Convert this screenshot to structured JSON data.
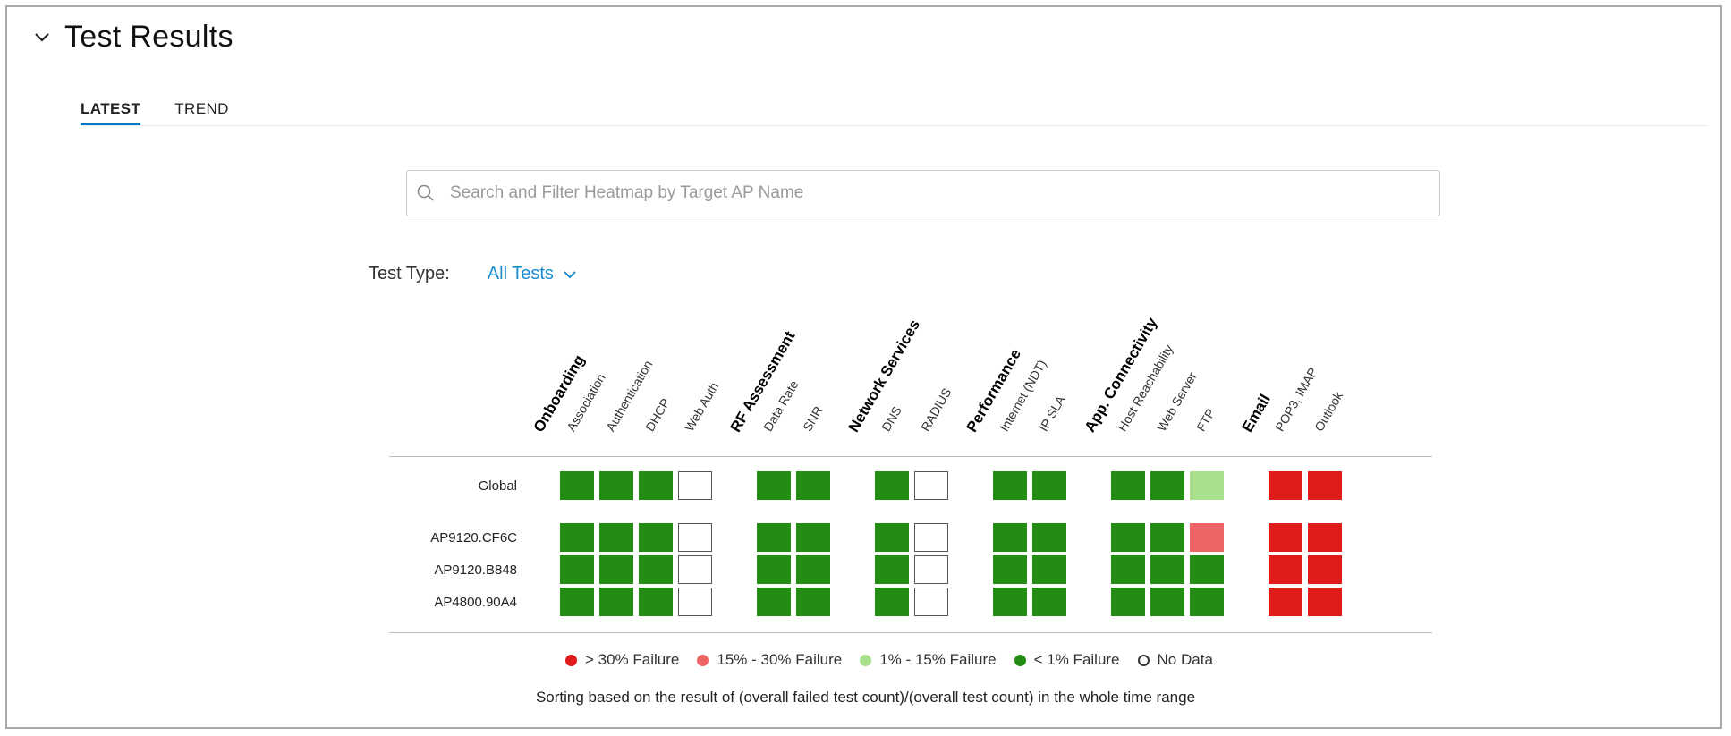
{
  "header": {
    "title": "Test Results"
  },
  "tabs": [
    {
      "label": "LATEST",
      "active": true
    },
    {
      "label": "TREND",
      "active": false
    }
  ],
  "search": {
    "placeholder": "Search and Filter Heatmap by Target AP Name",
    "value": ""
  },
  "filter": {
    "label": "Test Type:",
    "selected": "All Tests"
  },
  "colors": {
    "accent": "#1a8cd0",
    "tab_underline": "#0a78c8",
    "fail_over_30": "#e01b1b",
    "fail_15_30": "#ee6464",
    "fail_1_15": "#a8e08e",
    "fail_under_1": "#238c12",
    "no_data": "#ffffff"
  },
  "groups": [
    {
      "name": "Onboarding",
      "tests": [
        "Association",
        "Authentication",
        "DHCP",
        "Web Auth"
      ]
    },
    {
      "name": "RF Assessment",
      "tests": [
        "Data Rate",
        "SNR"
      ]
    },
    {
      "name": "Network Services",
      "tests": [
        "DNS",
        "RADIUS"
      ]
    },
    {
      "name": "Performance",
      "tests": [
        "Internet (NDT)",
        "IP SLA"
      ]
    },
    {
      "name": "App. Connectivity",
      "tests": [
        "Host Reachability",
        "Web Server",
        "FTP"
      ]
    },
    {
      "name": "Email",
      "tests": [
        "POP3, IMAP",
        "Outlook"
      ]
    }
  ],
  "rows": [
    {
      "label": "Global",
      "cells": [
        "lt1",
        "lt1",
        "lt1",
        "none",
        "lt1",
        "lt1",
        "lt1",
        "none",
        "lt1",
        "lt1",
        "lt1",
        "lt1",
        "1to15",
        "gt30",
        "gt30"
      ]
    },
    {
      "label": "AP9120.CF6C",
      "cells": [
        "lt1",
        "lt1",
        "lt1",
        "none",
        "lt1",
        "lt1",
        "lt1",
        "none",
        "lt1",
        "lt1",
        "lt1",
        "lt1",
        "15to30",
        "gt30",
        "gt30"
      ]
    },
    {
      "label": "AP9120.B848",
      "cells": [
        "lt1",
        "lt1",
        "lt1",
        "none",
        "lt1",
        "lt1",
        "lt1",
        "none",
        "lt1",
        "lt1",
        "lt1",
        "lt1",
        "lt1",
        "gt30",
        "gt30"
      ]
    },
    {
      "label": "AP4800.90A4",
      "cells": [
        "lt1",
        "lt1",
        "lt1",
        "none",
        "lt1",
        "lt1",
        "lt1",
        "none",
        "lt1",
        "lt1",
        "lt1",
        "lt1",
        "lt1",
        "gt30",
        "gt30"
      ]
    }
  ],
  "legend": [
    {
      "key": "gt30",
      "label": "> 30% Failure"
    },
    {
      "key": "15to30",
      "label": "15% - 30% Failure"
    },
    {
      "key": "1to15",
      "label": "1% - 15% Failure"
    },
    {
      "key": "lt1",
      "label": "< 1% Failure"
    },
    {
      "key": "none",
      "label": "No Data"
    }
  ],
  "footnote": "Sorting based on the result of (overall failed test count)/(overall test count) in the whole time range"
}
